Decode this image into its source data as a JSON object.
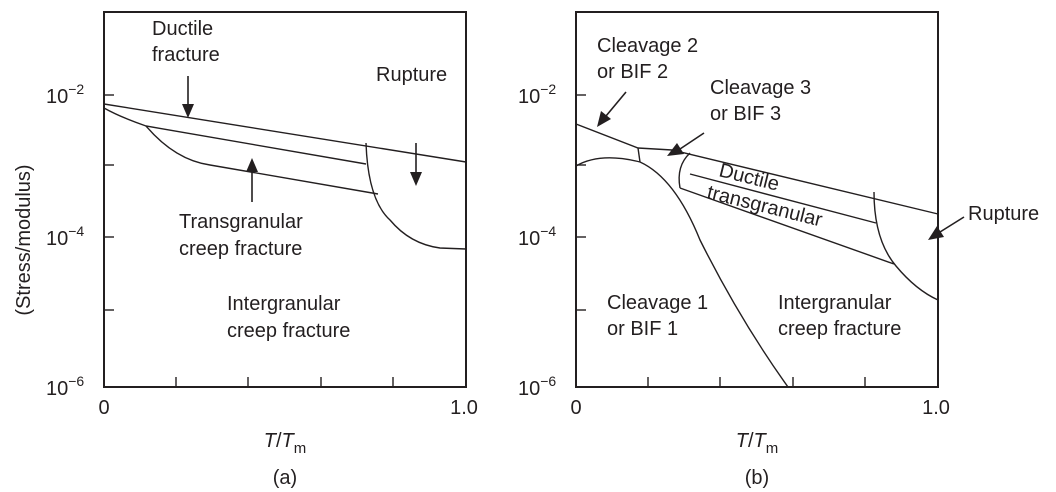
{
  "y_axis_title": "(Stress/modulus)",
  "x_axis_title_main": "T",
  "x_axis_title_sep": "/",
  "x_axis_title_sub_base": "T",
  "x_axis_title_sub": "m",
  "y_ticks": [
    {
      "base": "10",
      "exp": "−2"
    },
    {
      "base": "10",
      "exp": "−4"
    },
    {
      "base": "10",
      "exp": "−6"
    }
  ],
  "x_ticks": [
    "0",
    "1.0"
  ],
  "panels": [
    {
      "label": "(a)",
      "regions": {
        "ductile": [
          "Ductile",
          "fracture"
        ],
        "rupture": [
          "Rupture"
        ],
        "transgranular": [
          "Transgranular",
          "creep fracture"
        ],
        "intergranular": [
          "Intergranular",
          "creep fracture"
        ]
      }
    },
    {
      "label": "(b)",
      "regions": {
        "cleavage2": [
          "Cleavage 2",
          "or BIF 2"
        ],
        "cleavage3": [
          "Cleavage 3",
          "or BIF 3"
        ],
        "ductile": [
          "Ductile"
        ],
        "transgranular": [
          "transgranular"
        ],
        "rupture": [
          "Rupture"
        ],
        "cleavage1": [
          "Cleavage 1",
          "or BIF 1"
        ],
        "intergranular": [
          "Intergranular",
          "creep fracture"
        ]
      }
    }
  ]
}
